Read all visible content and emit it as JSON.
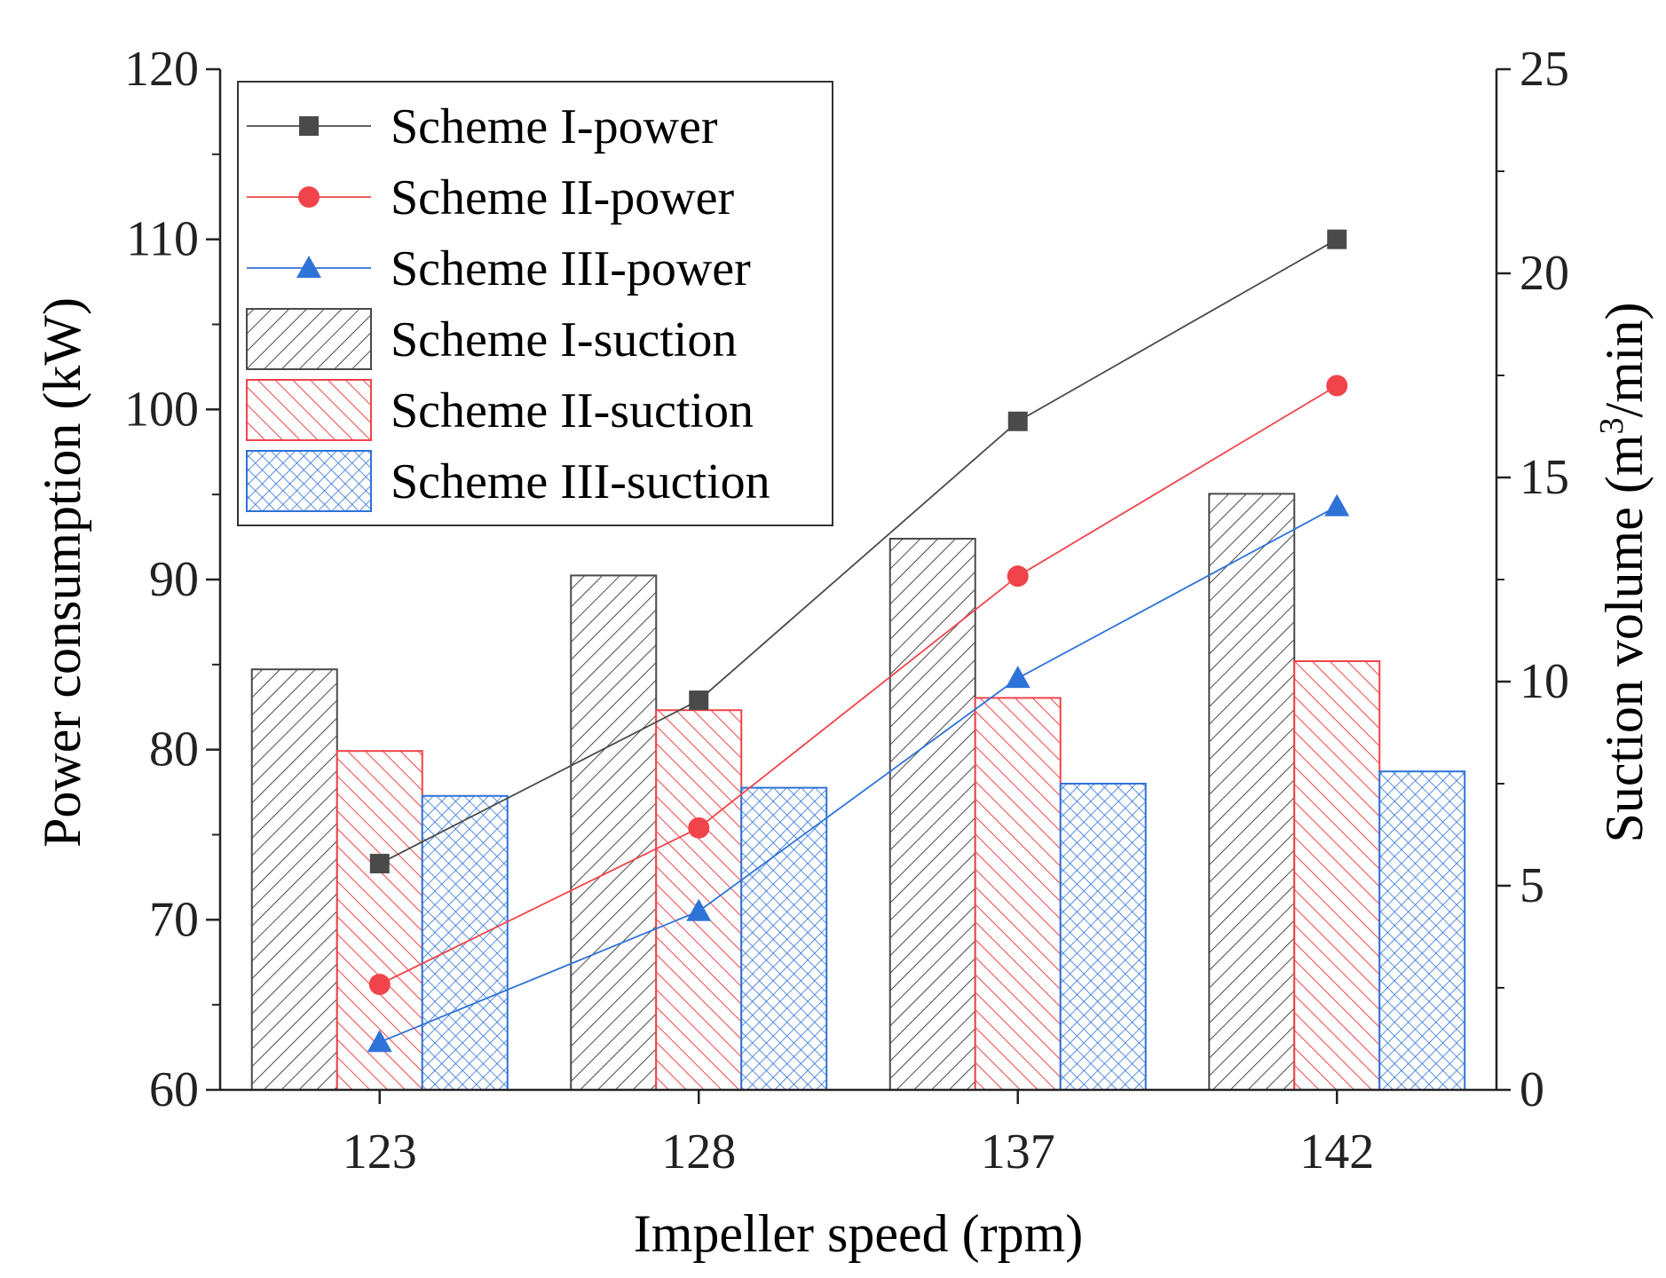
{
  "chart_data": {
    "type": "bar+line",
    "title": "",
    "xlabel": "Impeller speed (rpm)",
    "ylabel_left": "Power consumption (kW)",
    "ylabel_right_prefix": "Suction volume (m",
    "ylabel_right_sup": "3",
    "ylabel_right_suffix": "/min)",
    "categories": [
      "123",
      "128",
      "137",
      "142"
    ],
    "ylim_left": [
      60,
      120
    ],
    "yticks_left": [
      60,
      70,
      80,
      90,
      100,
      110,
      120
    ],
    "ylim_right": [
      0,
      25
    ],
    "yticks_right": [
      0,
      5,
      10,
      15,
      20,
      25
    ],
    "legend_position": "top-left",
    "colors": {
      "scheme1": "#4a4a4a",
      "scheme2": "#f0444a",
      "scheme3": "#2e73d8"
    },
    "line_series": [
      {
        "name": "Scheme I-power",
        "axis": "left",
        "marker": "square",
        "color_key": "scheme1",
        "values": [
          73.3,
          82.9,
          99.3,
          110.0
        ]
      },
      {
        "name": "Scheme II-power",
        "axis": "left",
        "marker": "circle",
        "color_key": "scheme2",
        "values": [
          66.2,
          75.4,
          90.2,
          101.4
        ]
      },
      {
        "name": "Scheme III-power",
        "axis": "left",
        "marker": "triangle",
        "color_key": "scheme3",
        "values": [
          62.8,
          70.5,
          84.2,
          94.3
        ]
      }
    ],
    "bar_series": [
      {
        "name": "Scheme I-suction",
        "axis": "right",
        "pattern": "diagonal-hatch",
        "color_key": "scheme1",
        "values": [
          10.3,
          12.6,
          13.5,
          14.6
        ]
      },
      {
        "name": "Scheme II-suction",
        "axis": "right",
        "pattern": "back-diagonal-hatch",
        "color_key": "scheme2",
        "values": [
          8.3,
          9.3,
          9.6,
          10.5
        ]
      },
      {
        "name": "Scheme III-suction",
        "axis": "right",
        "pattern": "cross-hatch",
        "color_key": "scheme3",
        "values": [
          7.2,
          7.4,
          7.5,
          7.8
        ]
      }
    ]
  }
}
